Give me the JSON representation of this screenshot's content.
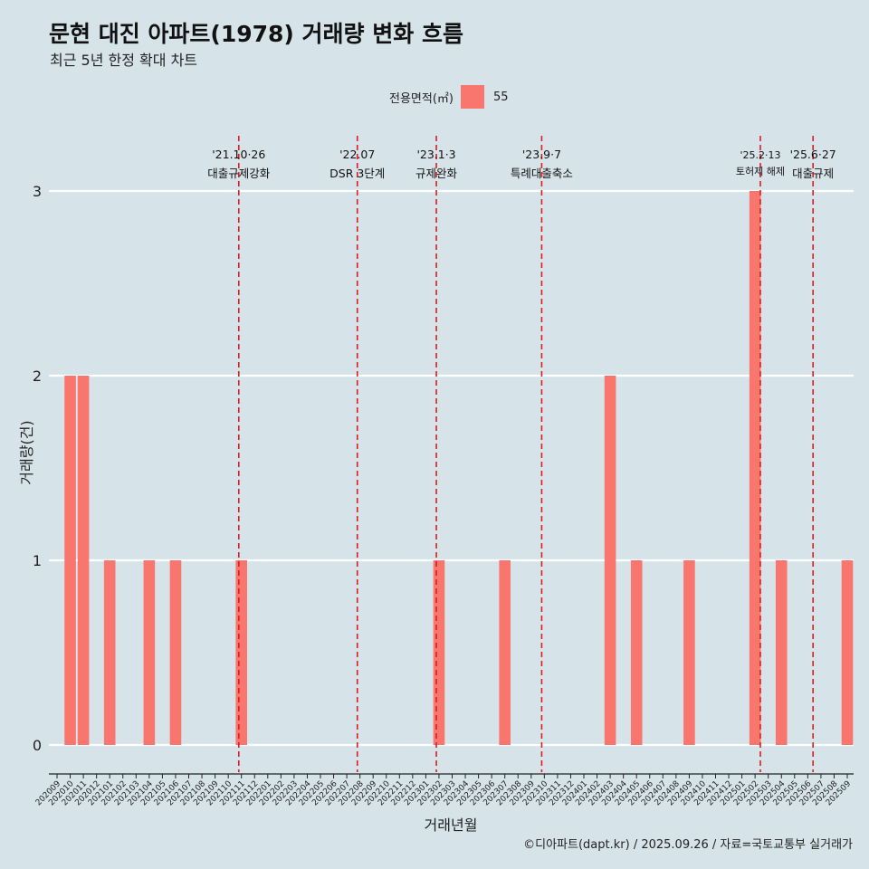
{
  "title": "문현 대진 아파트(1978) 거래량 변화 흐름",
  "subtitle": "최근 5년 한정 확대 차트",
  "caption": "©디아파트(dapt.kr) / 2025.09.26 / 자료=국토교통부 실거래가",
  "colors": {
    "bar": "#f8766d",
    "background": "#d6e4ea",
    "event_line": "#e41a1c"
  },
  "chart_data": {
    "type": "bar",
    "title": "문현 대진 아파트(1978) 거래량 변화 흐름",
    "xlabel": "거래년월",
    "ylabel": "거래량(건)",
    "ylim": [
      0,
      3
    ],
    "y_ticks": [
      0,
      1,
      2,
      3
    ],
    "grid": true,
    "legend": {
      "title": "전용면적(㎡)",
      "entries": [
        "55"
      ],
      "position": "top"
    },
    "categories": [
      "202009",
      "202010",
      "202011",
      "202012",
      "202101",
      "202102",
      "202103",
      "202104",
      "202105",
      "202106",
      "202107",
      "202108",
      "202109",
      "202110",
      "202111",
      "202112",
      "202201",
      "202202",
      "202203",
      "202204",
      "202205",
      "202206",
      "202207",
      "202208",
      "202209",
      "202210",
      "202211",
      "202212",
      "202301",
      "202302",
      "202303",
      "202304",
      "202305",
      "202306",
      "202307",
      "202308",
      "202309",
      "202310",
      "202311",
      "202312",
      "202401",
      "202402",
      "202403",
      "202404",
      "202405",
      "202406",
      "202407",
      "202408",
      "202409",
      "202410",
      "202411",
      "202412",
      "202501",
      "202502",
      "202503",
      "202504",
      "202505",
      "202506",
      "202507",
      "202508",
      "202509"
    ],
    "series": [
      {
        "name": "55",
        "values": [
          0,
          2,
          2,
          0,
          1,
          0,
          0,
          1,
          0,
          1,
          0,
          0,
          0,
          0,
          1,
          0,
          0,
          0,
          0,
          0,
          0,
          0,
          0,
          0,
          0,
          0,
          0,
          0,
          0,
          1,
          0,
          0,
          0,
          0,
          1,
          0,
          0,
          0,
          0,
          0,
          0,
          0,
          2,
          0,
          1,
          0,
          0,
          0,
          1,
          0,
          0,
          0,
          0,
          3,
          0,
          1,
          0,
          0,
          0,
          0,
          1
        ]
      }
    ],
    "events": [
      {
        "date": "'21.10·26",
        "label": "대출규제강화",
        "index": 13.8
      },
      {
        "date": "'22.07",
        "label": "DSR 3단계",
        "index": 22.8
      },
      {
        "date": "'23.1·3",
        "label": "규제완화",
        "index": 28.8
      },
      {
        "date": "'23.9·7",
        "label": "특례대출축소",
        "index": 36.8
      },
      {
        "date": "'25.2·13",
        "label": "토허제 해제",
        "index": 53.4
      },
      {
        "date": "'25.6·27",
        "label": "대출규제",
        "index": 57.4
      }
    ]
  }
}
